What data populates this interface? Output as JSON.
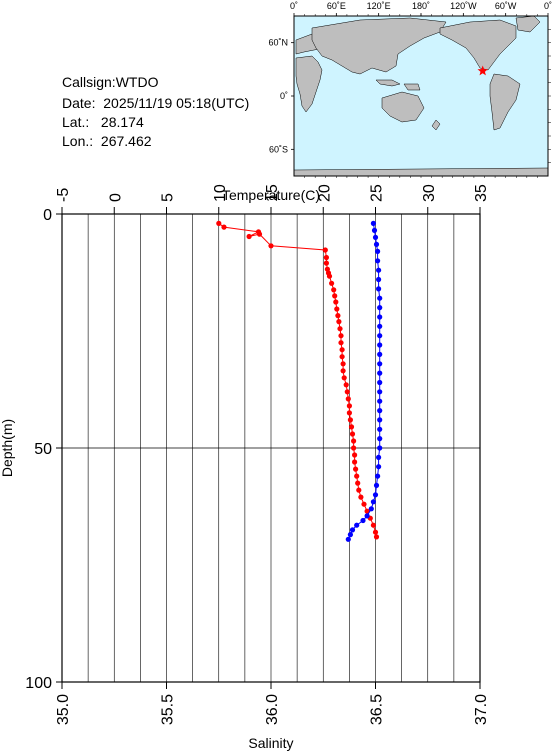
{
  "info": {
    "callsign": "Callsign:WTDO",
    "date": "Date:  2025/11/19 05:18(UTC)",
    "lat": "Lat.:   28.174",
    "lon": "Lon.:  267.462"
  },
  "map": {
    "lon_labels": [
      "0˚",
      "60˚E",
      "120˚E",
      "180˚",
      "120˚W",
      "60˚W",
      "0˚"
    ],
    "lat_labels": [
      "60˚N",
      "0˚",
      "60˚S"
    ],
    "station": {
      "lon": 267.462,
      "lat": 28.174
    },
    "colors": {
      "ocean": "#cff4ff",
      "land": "#bebebe",
      "marker": "#ff0000"
    }
  },
  "chart_data": {
    "type": "scatter",
    "top_axis": {
      "label": "Temperature(C)",
      "range": [
        -5,
        35
      ],
      "ticks": [
        "-5",
        "0",
        "5",
        "10",
        "15",
        "20",
        "25",
        "30",
        "35"
      ]
    },
    "bottom_axis": {
      "label": "Salinity",
      "range": [
        35.0,
        37.0
      ],
      "ticks": [
        "35.0",
        "35.5",
        "36.0",
        "36.5",
        "37.0"
      ]
    },
    "y_axis": {
      "label": "Depth(m)",
      "range": [
        0,
        100
      ],
      "inverted": true,
      "ticks": [
        "0",
        "50",
        "100"
      ]
    },
    "grid": {
      "vertical_step_temp": 2.5,
      "horizontal_depths": [
        50
      ]
    },
    "series": [
      {
        "quantity": "temperature",
        "color": "#ff0000",
        "points": [
          [
            10.0,
            2.0
          ],
          [
            10.5,
            2.8
          ],
          [
            13.8,
            3.8
          ],
          [
            12.9,
            4.8
          ],
          [
            13.9,
            4.3
          ],
          [
            15.0,
            6.8
          ],
          [
            20.2,
            7.7
          ],
          [
            20.3,
            9.3
          ],
          [
            20.3,
            10.5
          ],
          [
            20.4,
            11.8
          ],
          [
            20.5,
            12.6
          ],
          [
            20.6,
            13.3
          ],
          [
            20.8,
            14.8
          ],
          [
            21.0,
            16.2
          ],
          [
            21.1,
            17.5
          ],
          [
            21.2,
            18.8
          ],
          [
            21.3,
            20.3
          ],
          [
            21.4,
            21.7
          ],
          [
            21.5,
            23.0
          ],
          [
            21.6,
            24.5
          ],
          [
            21.7,
            26.0
          ],
          [
            21.7,
            27.5
          ],
          [
            21.8,
            29.0
          ],
          [
            21.8,
            30.5
          ],
          [
            21.9,
            32.0
          ],
          [
            21.9,
            33.5
          ],
          [
            22.0,
            35.0
          ],
          [
            22.2,
            36.5
          ],
          [
            22.3,
            38.0
          ],
          [
            22.4,
            39.5
          ],
          [
            22.5,
            41.0
          ],
          [
            22.5,
            42.5
          ],
          [
            22.6,
            44.0
          ],
          [
            22.7,
            45.5
          ],
          [
            22.8,
            47.0
          ],
          [
            22.9,
            48.5
          ],
          [
            22.9,
            50.0
          ],
          [
            23.0,
            51.5
          ],
          [
            23.0,
            53.0
          ],
          [
            23.1,
            54.5
          ],
          [
            23.2,
            56.0
          ],
          [
            23.3,
            57.5
          ],
          [
            23.4,
            59.0
          ],
          [
            23.6,
            60.5
          ],
          [
            23.9,
            62.0
          ],
          [
            24.2,
            63.5
          ],
          [
            24.5,
            65.0
          ],
          [
            24.8,
            66.5
          ],
          [
            25.0,
            68.0
          ],
          [
            25.1,
            69.0
          ]
        ]
      },
      {
        "quantity": "salinity",
        "color": "#0000ff",
        "points": [
          [
            36.49,
            2.0
          ],
          [
            36.495,
            3.5
          ],
          [
            36.5,
            5.0
          ],
          [
            36.505,
            6.5
          ],
          [
            36.51,
            8.0
          ],
          [
            36.51,
            10.0
          ],
          [
            36.515,
            12.0
          ],
          [
            36.515,
            14.0
          ],
          [
            36.515,
            16.0
          ],
          [
            36.52,
            18.0
          ],
          [
            36.52,
            20.0
          ],
          [
            36.52,
            22.0
          ],
          [
            36.52,
            24.0
          ],
          [
            36.52,
            26.0
          ],
          [
            36.52,
            28.0
          ],
          [
            36.52,
            30.0
          ],
          [
            36.52,
            32.0
          ],
          [
            36.52,
            34.0
          ],
          [
            36.52,
            36.0
          ],
          [
            36.52,
            38.0
          ],
          [
            36.52,
            40.0
          ],
          [
            36.52,
            42.0
          ],
          [
            36.52,
            44.0
          ],
          [
            36.52,
            46.0
          ],
          [
            36.52,
            48.0
          ],
          [
            36.52,
            50.0
          ],
          [
            36.515,
            52.0
          ],
          [
            36.515,
            54.0
          ],
          [
            36.51,
            56.0
          ],
          [
            36.505,
            58.0
          ],
          [
            36.5,
            60.0
          ],
          [
            36.49,
            61.5
          ],
          [
            36.48,
            63.0
          ],
          [
            36.46,
            64.5
          ],
          [
            36.44,
            65.5
          ],
          [
            36.41,
            66.5
          ],
          [
            36.39,
            67.5
          ],
          [
            36.38,
            68.5
          ],
          [
            36.37,
            69.5
          ]
        ]
      }
    ]
  }
}
